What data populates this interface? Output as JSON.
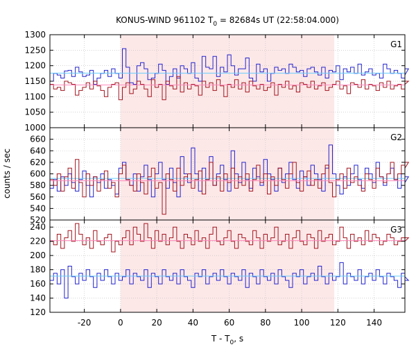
{
  "title": {
    "prefix": "KONUS-WIND 961102 T",
    "subscript": "0",
    "suffix": " = 82684s UT (22:58:04.000)"
  },
  "xlabel": {
    "prefix": "T - T",
    "subscript": "0",
    "suffix": ", s"
  },
  "ylabel": "counts / sec",
  "colors": {
    "shade": "#fde8e8",
    "blue_series": "#2222cc",
    "red_series": "#a0141e",
    "blue_mean": "#66ccff",
    "red_mean": "#ff88bb",
    "frame": "#000000",
    "grid": "#bbbbbb"
  },
  "chart_data": [
    {
      "type": "line",
      "step": true,
      "panel_label": "G1",
      "xlim": [
        -39,
        157
      ],
      "ylim": [
        1000,
        1300
      ],
      "yticks": [
        1000,
        1050,
        1100,
        1150,
        1200,
        1250,
        1300
      ],
      "xticks": [
        -20,
        0,
        20,
        40,
        60,
        80,
        100,
        120,
        140
      ],
      "grid": true,
      "shaded_interval": [
        0,
        118
      ],
      "series": [
        {
          "color": "blue",
          "mean": 1176,
          "bin_width": 2,
          "x_start": -39,
          "values": [
            1150,
            1175,
            1170,
            1160,
            1183,
            1185,
            1165,
            1195,
            1180,
            1165,
            1170,
            1185,
            1140,
            1160,
            1175,
            1185,
            1165,
            1190,
            1175,
            1160,
            1255,
            1195,
            1145,
            1140,
            1200,
            1210,
            1190,
            1155,
            1160,
            1175,
            1205,
            1185,
            1140,
            1165,
            1190,
            1160,
            1200,
            1190,
            1175,
            1210,
            1160,
            1150,
            1230,
            1195,
            1190,
            1230,
            1165,
            1195,
            1180,
            1235,
            1200,
            1170,
            1190,
            1190,
            1225,
            1160,
            1150,
            1205,
            1180,
            1190,
            1150,
            1175,
            1195,
            1185,
            1190,
            1175,
            1205,
            1195,
            1180,
            1185,
            1165,
            1190,
            1195,
            1180,
            1170,
            1195,
            1160,
            1185,
            1180,
            1200,
            1155,
            1190,
            1180,
            1195,
            1175,
            1205,
            1170,
            1180,
            1190,
            1170,
            1175,
            1160,
            1205,
            1190,
            1175,
            1185,
            1175,
            1160,
            1170,
            1190
          ]
        },
        {
          "color": "red",
          "mean": 1138,
          "bin_width": 2,
          "x_start": -39,
          "values": [
            1140,
            1125,
            1130,
            1120,
            1150,
            1145,
            1140,
            1105,
            1120,
            1130,
            1145,
            1125,
            1150,
            1135,
            1120,
            1100,
            1130,
            1140,
            1145,
            1090,
            1130,
            1145,
            1110,
            1125,
            1150,
            1140,
            1125,
            1100,
            1155,
            1130,
            1140,
            1090,
            1150,
            1135,
            1125,
            1165,
            1115,
            1145,
            1125,
            1140,
            1135,
            1105,
            1150,
            1130,
            1145,
            1120,
            1155,
            1135,
            1100,
            1140,
            1130,
            1155,
            1125,
            1145,
            1115,
            1150,
            1135,
            1125,
            1140,
            1120,
            1130,
            1145,
            1105,
            1140,
            1130,
            1150,
            1125,
            1135,
            1115,
            1145,
            1140,
            1130,
            1150,
            1125,
            1135,
            1145,
            1120,
            1130,
            1140,
            1150,
            1125,
            1135,
            1110,
            1145,
            1140,
            1130,
            1155,
            1125,
            1140,
            1135,
            1120,
            1145,
            1130,
            1150,
            1125,
            1135,
            1140,
            1125,
            1140,
            1150
          ]
        }
      ]
    },
    {
      "type": "line",
      "step": true,
      "panel_label": "G2",
      "xlim": [
        -39,
        157
      ],
      "ylim": [
        520,
        680
      ],
      "yticks": [
        520,
        540,
        560,
        580,
        600,
        620,
        640,
        660
      ],
      "xticks": [
        -20,
        0,
        20,
        40,
        60,
        80,
        100,
        120,
        140
      ],
      "grid": true,
      "shaded_interval": [
        0,
        118
      ],
      "series": [
        {
          "color": "blue",
          "mean": 592,
          "bin_width": 2,
          "x_start": -39,
          "values": [
            575,
            590,
            570,
            595,
            580,
            600,
            585,
            570,
            590,
            605,
            580,
            560,
            595,
            585,
            600,
            575,
            590,
            580,
            565,
            610,
            620,
            590,
            580,
            600,
            570,
            595,
            615,
            590,
            560,
            600,
            620,
            590,
            575,
            610,
            585,
            560,
            630,
            600,
            585,
            645,
            600,
            570,
            610,
            590,
            630,
            580,
            600,
            615,
            590,
            570,
            640,
            600,
            585,
            620,
            590,
            575,
            610,
            595,
            580,
            625,
            600,
            590,
            570,
            610,
            585,
            600,
            620,
            590,
            575,
            605,
            595,
            580,
            615,
            600,
            590,
            570,
            610,
            650,
            600,
            580,
            565,
            595,
            580,
            600,
            615,
            590,
            575,
            610,
            600,
            585,
            620,
            595,
            580,
            600,
            610,
            590,
            575,
            600,
            585,
            595
          ]
        },
        {
          "color": "red",
          "mean": 588,
          "bin_width": 2,
          "x_start": -39,
          "values": [
            590,
            580,
            600,
            570,
            595,
            610,
            575,
            625,
            585,
            560,
            600,
            580,
            595,
            570,
            590,
            605,
            575,
            585,
            560,
            600,
            615,
            590,
            580,
            570,
            600,
            585,
            565,
            595,
            610,
            575,
            585,
            530,
            600,
            590,
            570,
            610,
            580,
            595,
            600,
            575,
            590,
            605,
            565,
            590,
            620,
            580,
            595,
            570,
            600,
            585,
            610,
            575,
            595,
            580,
            600,
            570,
            590,
            615,
            585,
            600,
            565,
            595,
            580,
            610,
            590,
            575,
            600,
            620,
            585,
            570,
            595,
            605,
            580,
            590,
            575,
            600,
            615,
            585,
            560,
            590,
            600,
            575,
            610,
            585,
            595,
            580,
            570,
            600,
            590,
            575,
            610,
            595,
            585,
            600,
            620,
            590,
            600,
            615,
            610,
            620
          ]
        }
      ]
    },
    {
      "type": "line",
      "step": true,
      "panel_label": "G3",
      "xlim": [
        -39,
        157
      ],
      "ylim": [
        120,
        250
      ],
      "yticks": [
        120,
        140,
        160,
        180,
        200,
        220,
        240
      ],
      "xticks": [
        -20,
        0,
        20,
        40,
        60,
        80,
        100,
        120,
        140
      ],
      "grid": true,
      "shaded_interval": [
        0,
        118
      ],
      "series": [
        {
          "color": "red",
          "mean": 221,
          "bin_width": 2,
          "x_start": -39,
          "values": [
            220,
            215,
            230,
            210,
            225,
            235,
            220,
            245,
            230,
            215,
            225,
            210,
            235,
            220,
            215,
            225,
            230,
            205,
            220,
            215,
            225,
            235,
            215,
            240,
            230,
            220,
            245,
            225,
            210,
            235,
            220,
            230,
            215,
            225,
            240,
            220,
            210,
            230,
            225,
            215,
            235,
            220,
            225,
            210,
            230,
            240,
            220,
            215,
            225,
            235,
            220,
            210,
            230,
            225,
            220,
            215,
            235,
            225,
            210,
            230,
            220,
            225,
            240,
            215,
            220,
            230,
            210,
            225,
            235,
            220,
            215,
            230,
            225,
            210,
            235,
            220,
            225,
            230,
            215,
            220,
            240,
            225,
            210,
            230,
            220,
            225,
            215,
            235,
            220,
            230,
            225,
            215,
            220,
            230,
            225,
            215,
            220,
            225,
            220,
            225
          ]
        },
        {
          "color": "blue",
          "mean": 171,
          "bin_width": 2,
          "x_start": -39,
          "values": [
            165,
            175,
            160,
            180,
            140,
            185,
            170,
            160,
            175,
            165,
            180,
            170,
            155,
            175,
            165,
            180,
            170,
            160,
            175,
            165,
            170,
            180,
            160,
            175,
            170,
            165,
            180,
            155,
            175,
            170,
            160,
            180,
            170,
            165,
            175,
            160,
            180,
            170,
            165,
            155,
            175,
            170,
            180,
            160,
            170,
            175,
            165,
            180,
            170,
            160,
            175,
            170,
            165,
            180,
            155,
            175,
            170,
            160,
            180,
            170,
            165,
            175,
            160,
            180,
            170,
            165,
            155,
            175,
            170,
            180,
            160,
            170,
            175,
            165,
            185,
            170,
            160,
            175,
            165,
            170,
            190,
            160,
            175,
            170,
            165,
            180,
            160,
            170,
            175,
            165,
            180,
            170,
            160,
            175,
            170,
            165,
            155,
            175,
            170,
            165
          ]
        }
      ]
    }
  ]
}
